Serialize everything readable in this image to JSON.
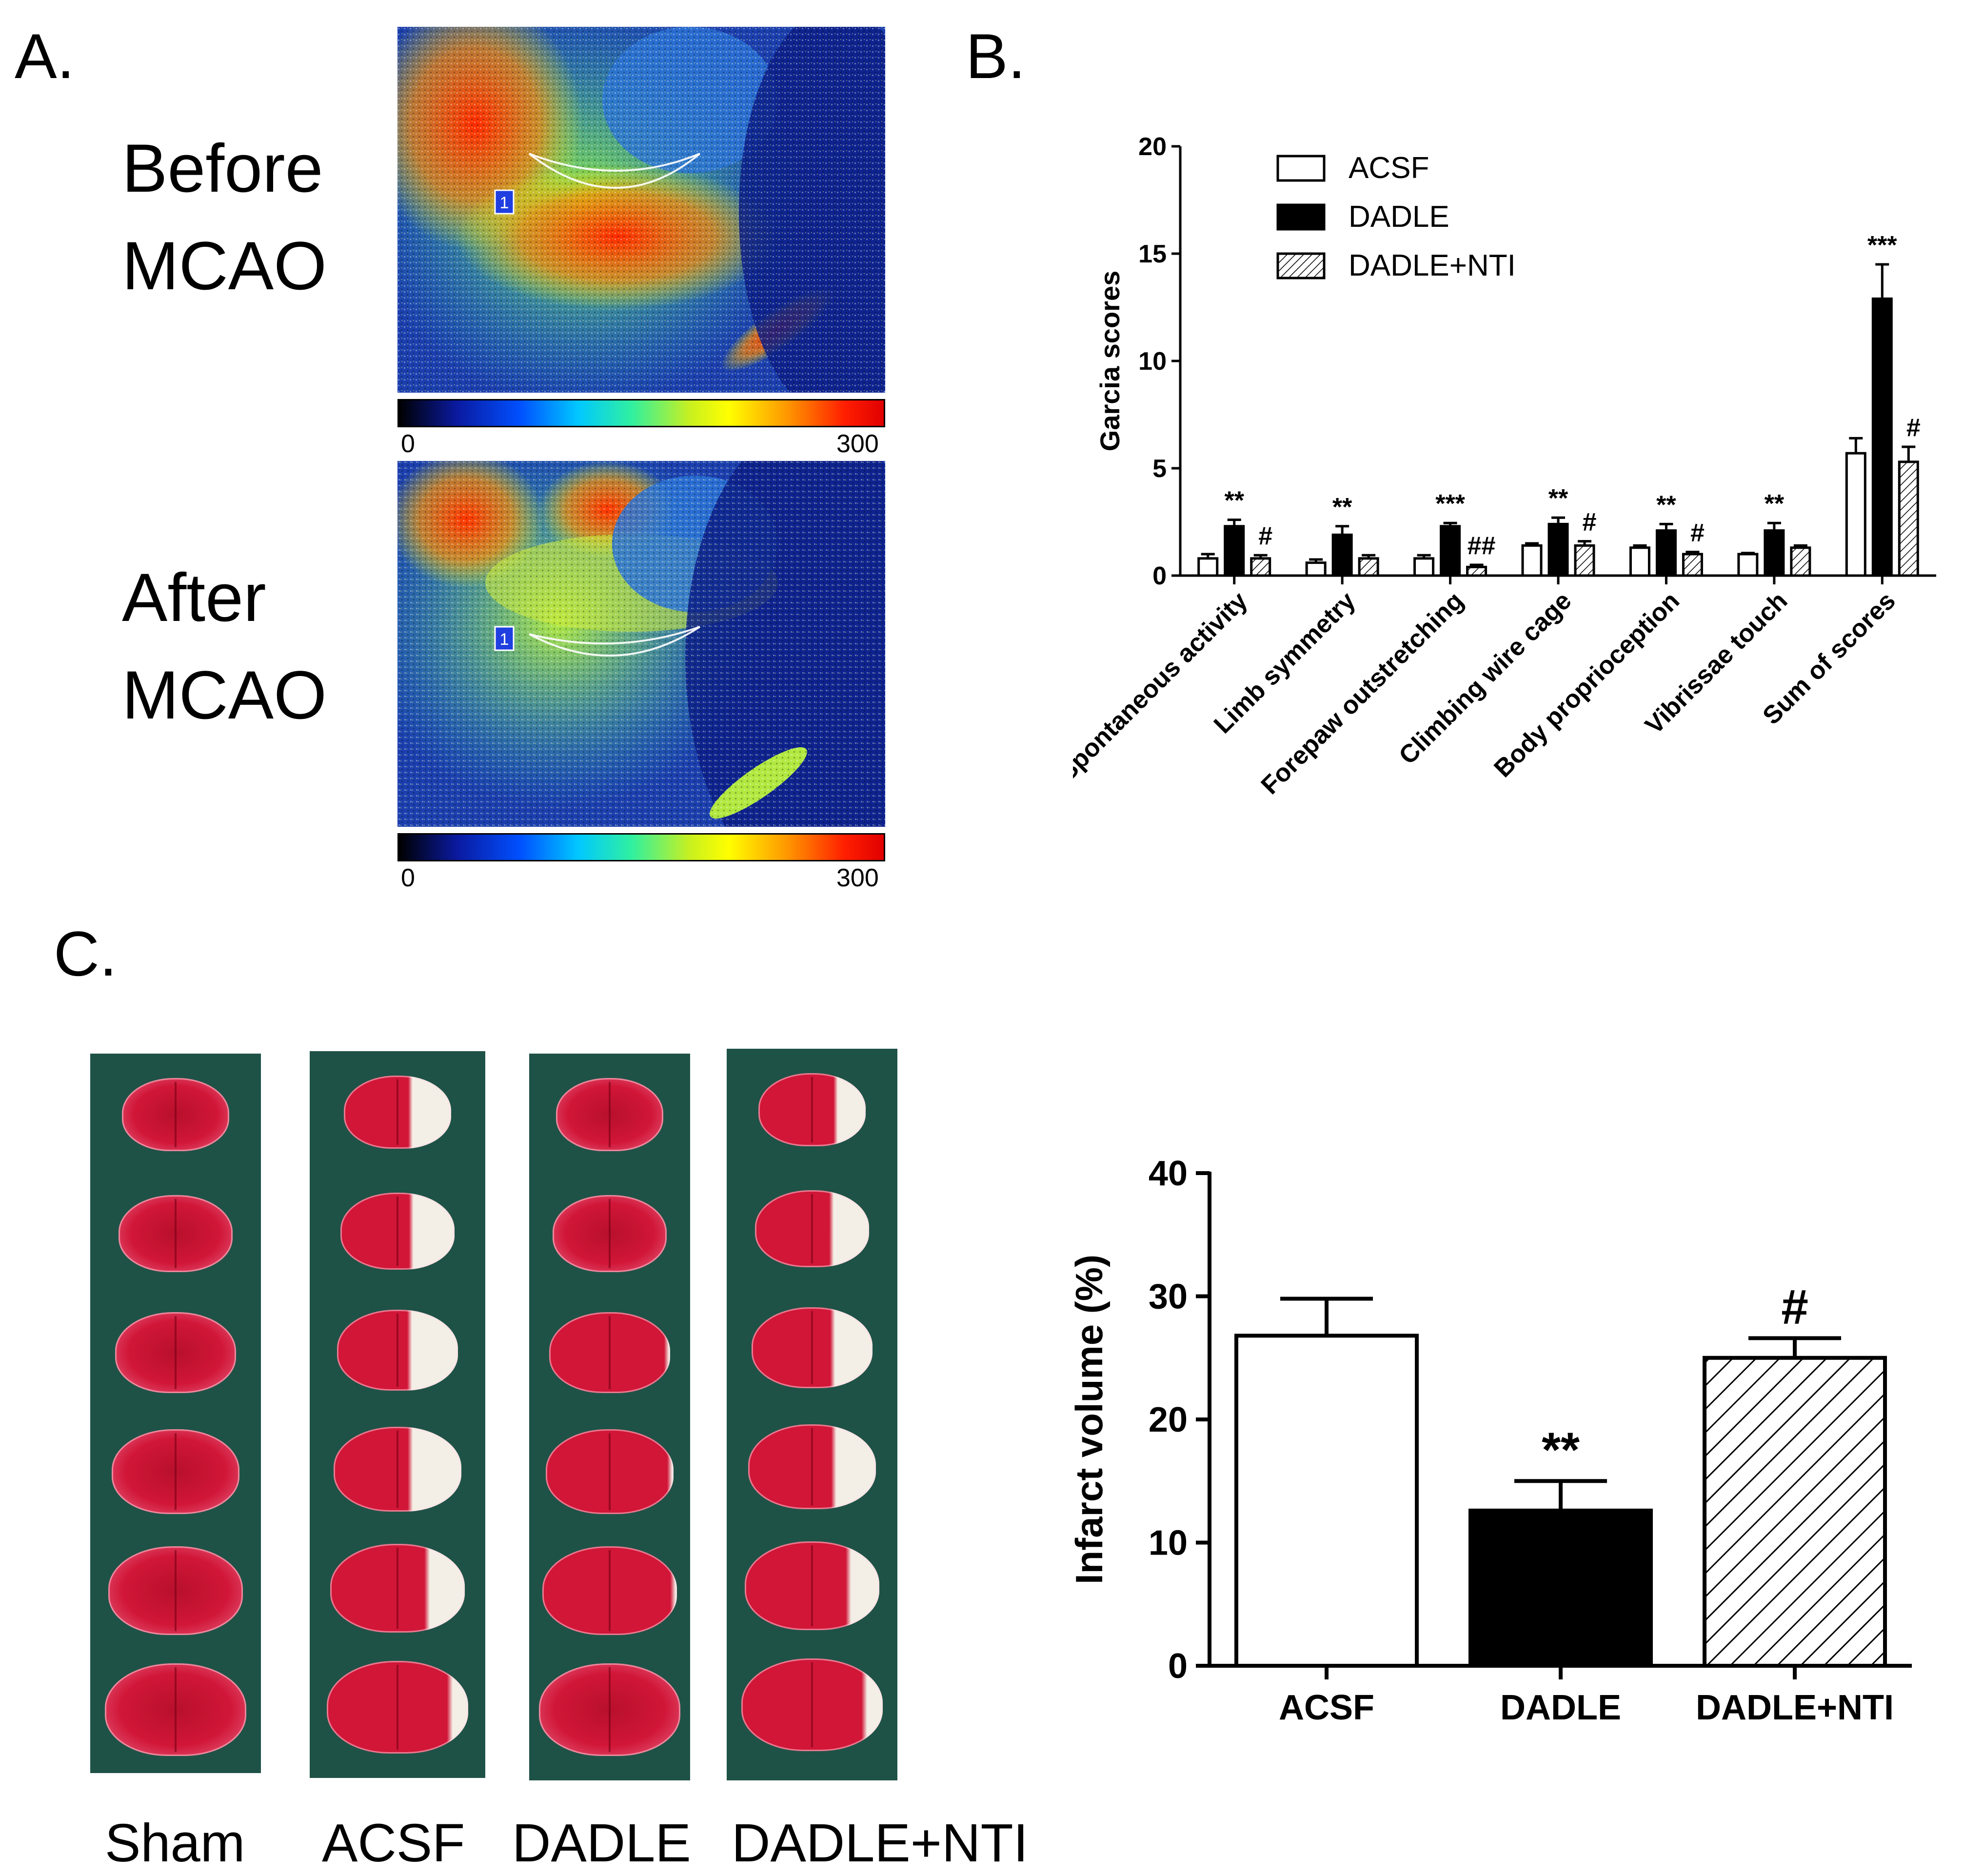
{
  "panels": {
    "a": "A.",
    "b": "B.",
    "c": "C."
  },
  "panel_a": {
    "before_line1": "Before",
    "before_line2": "MCAO",
    "after_line1": "After",
    "after_line2": "MCAO",
    "roi_label": "1",
    "colorbar_min": "0",
    "colorbar_max": "300"
  },
  "panel_c_photos": {
    "labels": [
      "Sham",
      "ACSF",
      "DADLE",
      "DADLE+NTI"
    ]
  },
  "colors": {
    "infarct_fill": "#ffffff",
    "dadle_fill": "#000000",
    "tissue_red": "#d11638",
    "tissue_white": "#f4efe6",
    "background_green": "#1f5247"
  },
  "chart_data": [
    {
      "type": "bar",
      "title": "",
      "xlabel": "",
      "ylabel": "Garcia scores",
      "ylim": [
        0,
        20
      ],
      "yticks": [
        "0",
        "5",
        "10",
        "15",
        "20"
      ],
      "categories": [
        "Spontaneous activity",
        "Limb symmetry",
        "Forepaw outstretching",
        "Climbing wire cage",
        "Body proprioception",
        "Vibrissae touch",
        "Sum of scores"
      ],
      "series": [
        {
          "name": "ACSF",
          "pattern": "open",
          "values": [
            0.8,
            0.6,
            0.8,
            1.4,
            1.3,
            1.0,
            5.7
          ],
          "errors": [
            0.2,
            0.15,
            0.15,
            0.1,
            0.1,
            0.05,
            0.7
          ]
        },
        {
          "name": "DADLE",
          "pattern": "solid",
          "values": [
            2.3,
            1.9,
            2.3,
            2.4,
            2.1,
            2.1,
            12.9
          ],
          "errors": [
            0.3,
            0.4,
            0.15,
            0.3,
            0.3,
            0.35,
            1.6
          ]
        },
        {
          "name": "DADLE+NTI",
          "pattern": "hatched",
          "values": [
            0.8,
            0.8,
            0.4,
            1.4,
            1.0,
            1.3,
            5.3
          ],
          "errors": [
            0.15,
            0.15,
            0.1,
            0.2,
            0.1,
            0.1,
            0.7
          ]
        }
      ],
      "annotations": [
        {
          "category": 0,
          "series": 1,
          "text": "**"
        },
        {
          "category": 0,
          "series": 2,
          "text": "#"
        },
        {
          "category": 1,
          "series": 1,
          "text": "**"
        },
        {
          "category": 2,
          "series": 1,
          "text": "***"
        },
        {
          "category": 2,
          "series": 2,
          "text": "##"
        },
        {
          "category": 3,
          "series": 1,
          "text": "**"
        },
        {
          "category": 3,
          "series": 2,
          "text": "#"
        },
        {
          "category": 4,
          "series": 1,
          "text": "**"
        },
        {
          "category": 4,
          "series": 2,
          "text": "#"
        },
        {
          "category": 5,
          "series": 1,
          "text": "**"
        },
        {
          "category": 6,
          "series": 1,
          "text": "***"
        },
        {
          "category": 6,
          "series": 2,
          "text": "#"
        }
      ],
      "legend": "top-left"
    },
    {
      "type": "bar",
      "title": "",
      "xlabel": "",
      "ylabel": "Infarct volume (%)",
      "ylim": [
        0,
        40
      ],
      "yticks": [
        "0",
        "10",
        "20",
        "30",
        "40"
      ],
      "categories": [
        "ACSF",
        "DADLE",
        "DADLE+NTI"
      ],
      "patterns": [
        "open",
        "solid",
        "hatched"
      ],
      "values": [
        26.8,
        12.6,
        25.0
      ],
      "errors": [
        3.0,
        2.4,
        1.6
      ],
      "annotations": [
        "",
        "**",
        "#"
      ]
    }
  ]
}
